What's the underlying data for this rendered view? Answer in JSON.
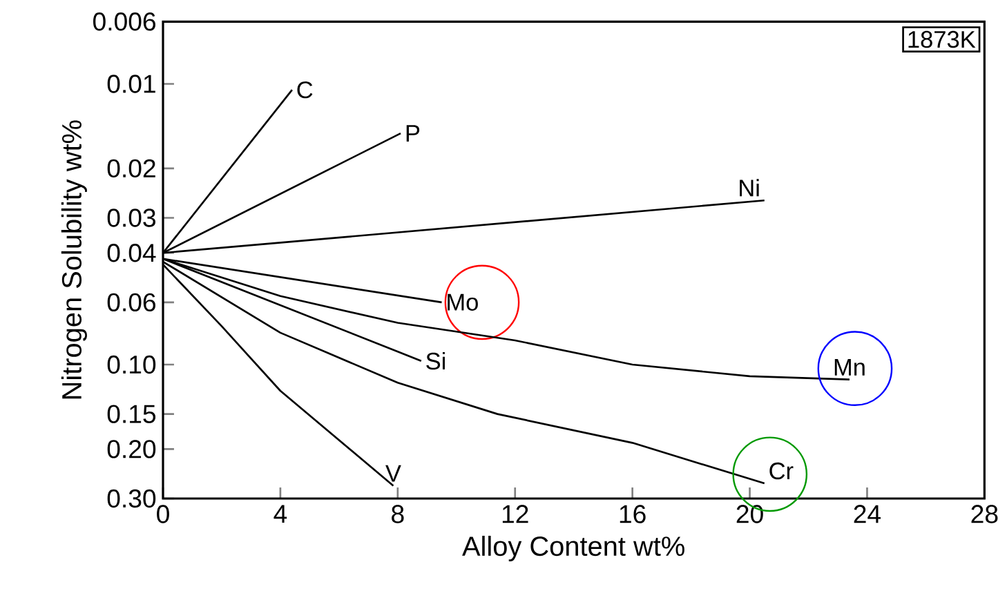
{
  "chart_data": {
    "type": "line",
    "xlabel": "Alloy Content wt%",
    "ylabel": "Nitrogen Solubility wt%",
    "annotations": [
      "1873K"
    ],
    "xlim": [
      0,
      28
    ],
    "xticks": [
      0,
      4,
      8,
      12,
      16,
      20,
      24,
      28
    ],
    "ylim": [
      0.3,
      0.006
    ],
    "log": "y",
    "yticks": [
      0.006,
      0.01,
      0.02,
      0.03,
      0.04,
      0.06,
      {
        "value": 0.1,
        "label": "0.10"
      },
      0.15,
      {
        "value": 0.2,
        "label": "0.20"
      },
      {
        "value": 0.3,
        "label": "0.30"
      }
    ],
    "grid": false,
    "legend": false,
    "marker": "none",
    "line_style": "solid",
    "series": [
      {
        "name": "C",
        "color": "#000000",
        "x": [
          0,
          4.4
        ],
        "values": [
          0.04,
          0.0105
        ]
      },
      {
        "name": "P",
        "color": "#000000",
        "x": [
          0,
          8.1
        ],
        "values": [
          0.04,
          0.015
        ]
      },
      {
        "name": "Ni",
        "color": "#000000",
        "x": [
          0,
          20.5
        ],
        "values": [
          0.04,
          0.026
        ]
      },
      {
        "name": "Mo",
        "color": "#000000",
        "x": [
          0,
          9.5
        ],
        "values": [
          0.042,
          0.06
        ]
      },
      {
        "name": "Mn",
        "color": "#000000",
        "x": [
          0,
          4,
          8,
          12,
          16,
          20,
          23.4
        ],
        "values": [
          0.042,
          0.057,
          0.071,
          0.082,
          0.1,
          0.11,
          0.113
        ]
      },
      {
        "name": "Si",
        "color": "#000000",
        "x": [
          0,
          8.8
        ],
        "values": [
          0.042,
          0.097
        ]
      },
      {
        "name": "Cr",
        "color": "#000000",
        "x": [
          0,
          4,
          8,
          11.4,
          16,
          20.5
        ],
        "values": [
          0.043,
          0.077,
          0.116,
          0.15,
          0.19,
          0.265
        ]
      },
      {
        "name": "V",
        "color": "#000000",
        "x": [
          0,
          2,
          4,
          7.85
        ],
        "values": [
          0.044,
          0.073,
          0.124,
          0.27
        ]
      }
    ]
  }
}
